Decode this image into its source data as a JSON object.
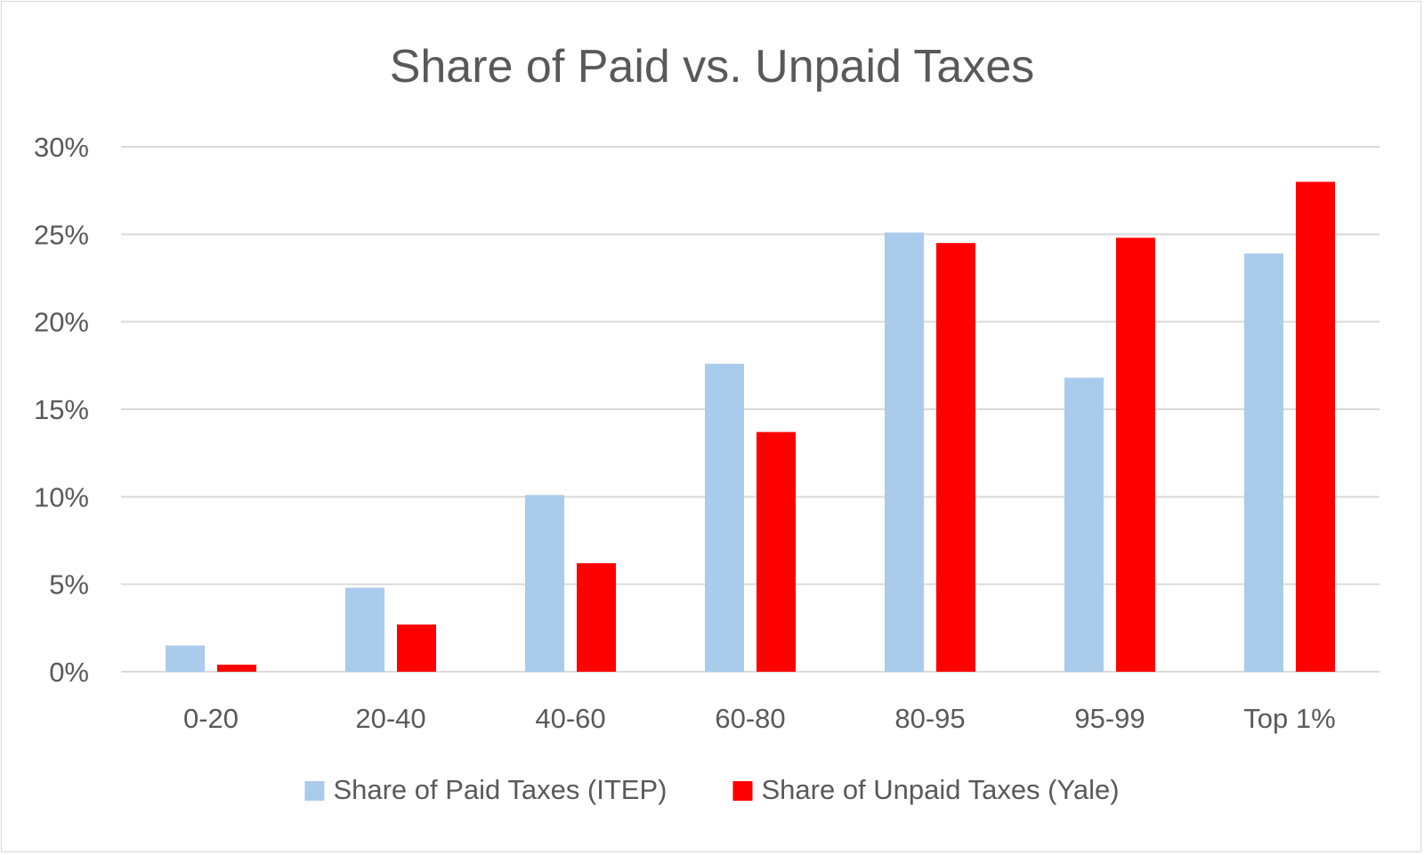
{
  "chart_data": {
    "type": "bar",
    "title": "Share of Paid vs. Unpaid Taxes",
    "xlabel": "",
    "ylabel": "",
    "categories": [
      "0-20",
      "20-40",
      "40-60",
      "60-80",
      "80-95",
      "95-99",
      "Top 1%"
    ],
    "series": [
      {
        "name": "Share of Paid Taxes (ITEP)",
        "color": "#a9cbec",
        "values": [
          1.5,
          4.8,
          10.1,
          17.6,
          25.1,
          16.8,
          23.9
        ]
      },
      {
        "name": "Share of Unpaid Taxes (Yale)",
        "color": "#ff0000",
        "values": [
          0.4,
          2.7,
          6.2,
          13.7,
          24.5,
          24.8,
          28.0
        ]
      }
    ],
    "ylim": [
      0,
      30
    ],
    "yticks": [
      0,
      5,
      10,
      15,
      20,
      25,
      30
    ],
    "ytick_labels": [
      "0%",
      "5%",
      "10%",
      "15%",
      "20%",
      "25%",
      "30%"
    ],
    "grid": true,
    "legend": "bottom",
    "gridline_color": "#d9d9d9",
    "text_color": "#595959"
  }
}
